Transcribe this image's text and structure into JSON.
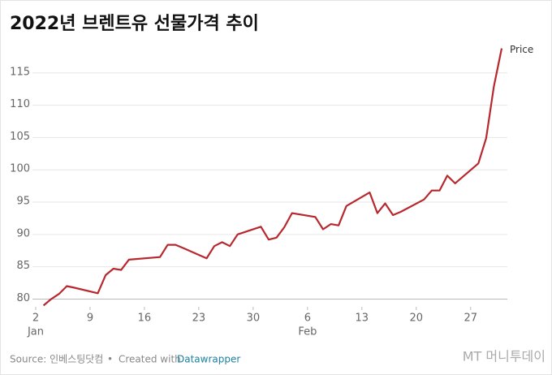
{
  "chart_data": {
    "type": "line",
    "title": "2022년 브렌트유 선물가격 추이",
    "x": [
      "01-03",
      "01-04",
      "01-05",
      "01-06",
      "01-07",
      "01-10",
      "01-11",
      "01-12",
      "01-13",
      "01-14",
      "01-18",
      "01-19",
      "01-20",
      "01-21",
      "01-24",
      "01-25",
      "01-26",
      "01-27",
      "01-28",
      "01-31",
      "02-01",
      "02-02",
      "02-03",
      "02-04",
      "02-07",
      "02-08",
      "02-09",
      "02-10",
      "02-11",
      "02-14",
      "02-15",
      "02-16",
      "02-17",
      "02-18",
      "02-21",
      "02-22",
      "02-23",
      "02-24",
      "02-25",
      "02-28",
      "03-01",
      "03-02",
      "03-03"
    ],
    "series": [
      {
        "name": "Price",
        "color": "#b7282e",
        "values": [
          79.0,
          80.0,
          80.8,
          82.0,
          81.75,
          80.9,
          83.7,
          84.7,
          84.5,
          86.1,
          86.5,
          88.4,
          88.4,
          87.9,
          86.3,
          88.2,
          88.8,
          88.2,
          90.0,
          91.2,
          89.2,
          89.5,
          91.1,
          93.3,
          92.7,
          90.8,
          91.6,
          91.4,
          94.4,
          96.5,
          93.3,
          94.8,
          93.0,
          93.5,
          95.4,
          96.8,
          96.8,
          99.1,
          97.9,
          101.0,
          104.9,
          112.9,
          118.8
        ]
      }
    ],
    "xlim": [
      "01-02",
      "03-03"
    ],
    "xticks": [
      {
        "value": "01-02",
        "label": "2"
      },
      {
        "value": "01-09",
        "label": "9"
      },
      {
        "value": "01-16",
        "label": "16"
      },
      {
        "value": "01-23",
        "label": "23"
      },
      {
        "value": "01-30",
        "label": "30"
      },
      {
        "value": "02-06",
        "label": "6"
      },
      {
        "value": "02-13",
        "label": "13"
      },
      {
        "value": "02-20",
        "label": "20"
      },
      {
        "value": "02-27",
        "label": "27"
      }
    ],
    "month_labels": [
      {
        "value": "01-02",
        "label": "Jan"
      },
      {
        "value": "02-06",
        "label": "Feb"
      }
    ],
    "ylim": [
      78.8,
      120
    ],
    "yticks": [
      80,
      85,
      90,
      95,
      100,
      105,
      110,
      115
    ],
    "grid": true,
    "footer": {
      "source": "Source: 인베스팅닷컴",
      "separator": "•",
      "created": "Created with",
      "tool": "Datawrapper"
    },
    "watermark": "MT 머니투데이"
  }
}
